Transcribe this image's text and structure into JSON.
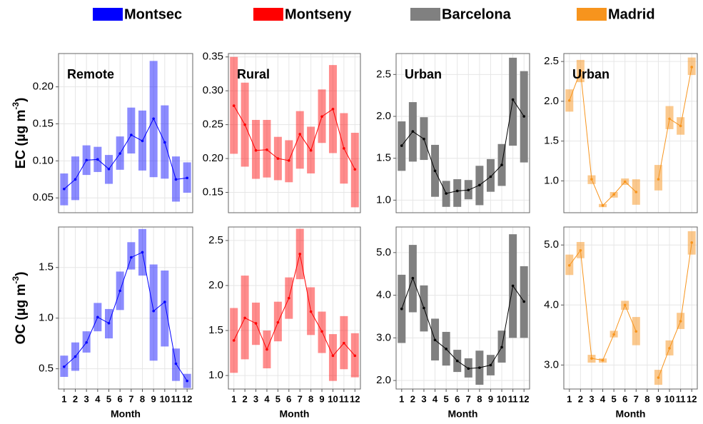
{
  "chart_data": [
    {
      "type": "floatbar",
      "label": "Remote",
      "ylabel": "EC (µg m",
      "ylabel_sup": "-3",
      "ylabel_end": ")",
      "categories": [
        "1",
        "2",
        "3",
        "4",
        "5",
        "6",
        "7",
        "8",
        "9",
        "10",
        "11",
        "12"
      ],
      "ylim": [
        0.03,
        0.245
      ],
      "yticks": [
        0.05,
        {
          "value": 0.1,
          "label": "0.10"
        },
        0.15,
        {
          "value": 0.2,
          "label": "0.20"
        }
      ],
      "grid": true,
      "series": [
        {
          "name": "Montsec",
          "color": "#0000ff",
          "line_color": "#0000ff",
          "opacity": 0.45,
          "low": [
            0.04,
            0.047,
            0.081,
            0.085,
            0.069,
            0.088,
            0.11,
            0.087,
            0.078,
            0.076,
            0.045,
            0.057
          ],
          "high": [
            0.083,
            0.106,
            0.121,
            0.119,
            0.108,
            0.133,
            0.172,
            0.168,
            0.235,
            0.175,
            0.106,
            0.098
          ],
          "values": [
            0.062,
            0.075,
            0.101,
            0.102,
            0.089,
            0.11,
            0.135,
            0.127,
            0.157,
            0.125,
            0.075,
            0.077
          ]
        }
      ]
    },
    {
      "type": "floatbar",
      "label": "Rural",
      "categories": [
        "1",
        "2",
        "3",
        "4",
        "5",
        "6",
        "7",
        "8",
        "9",
        "10",
        "11",
        "12"
      ],
      "ylim": [
        0.12,
        0.355
      ],
      "yticks": [
        0.15,
        {
          "value": 0.2,
          "label": "0.20"
        },
        0.25,
        {
          "value": 0.3,
          "label": "0.30"
        },
        0.35
      ],
      "grid": true,
      "series": [
        {
          "name": "Montseny",
          "color": "#ff0000",
          "line_color": "#ff0000",
          "opacity": 0.45,
          "low": [
            0.207,
            0.188,
            0.17,
            0.172,
            0.168,
            0.165,
            0.185,
            0.178,
            0.223,
            0.208,
            0.163,
            0.128
          ],
          "high": [
            0.35,
            0.312,
            0.257,
            0.257,
            0.232,
            0.227,
            0.27,
            0.247,
            0.302,
            0.338,
            0.267,
            0.238
          ],
          "values": [
            0.278,
            0.25,
            0.212,
            0.213,
            0.2,
            0.197,
            0.236,
            0.212,
            0.262,
            0.273,
            0.215,
            0.184
          ]
        }
      ]
    },
    {
      "type": "floatbar",
      "label": "Urban",
      "categories": [
        "1",
        "2",
        "3",
        "4",
        "5",
        "6",
        "7",
        "8",
        "9",
        "10",
        "11",
        "12"
      ],
      "ylim": [
        0.85,
        2.75
      ],
      "yticks": [
        {
          "value": 1,
          "label": "1.0"
        },
        1.5,
        {
          "value": 2,
          "label": "2.0"
        },
        2.5
      ],
      "grid": true,
      "series": [
        {
          "name": "Barcelona",
          "color": "#808080",
          "line_color": "#000000",
          "opacity": 1,
          "low": [
            1.35,
            1.46,
            1.48,
            1.04,
            0.92,
            0.92,
            1.01,
            0.94,
            1.1,
            1.17,
            1.65,
            1.45
          ],
          "high": [
            1.94,
            2.17,
            1.99,
            1.66,
            1.23,
            1.25,
            1.24,
            1.41,
            1.49,
            1.67,
            2.7,
            2.54
          ],
          "values": [
            1.65,
            1.82,
            1.73,
            1.35,
            1.08,
            1.11,
            1.12,
            1.18,
            1.28,
            1.42,
            2.2,
            2.0
          ]
        }
      ]
    },
    {
      "type": "floatbar",
      "label": "Urban",
      "categories": [
        "1",
        "2",
        "3",
        "4",
        "5",
        "6",
        "7",
        "8",
        "9",
        "10",
        "11",
        "12"
      ],
      "ylim": [
        0.6,
        2.6
      ],
      "yticks": [
        {
          "value": 1,
          "label": "1.0"
        },
        1.5,
        {
          "value": 2,
          "label": "2.0"
        },
        2.5
      ],
      "grid": true,
      "series": [
        {
          "name": "Madrid",
          "color": "#f7941d",
          "line_color": "#f7941d",
          "opacity": 0.5,
          "low": [
            1.87,
            2.24,
            0.96,
            0.67,
            0.79,
            0.95,
            0.7,
            null,
            0.88,
            1.65,
            1.58,
            2.33
          ],
          "high": [
            2.15,
            2.52,
            1.07,
            0.71,
            0.86,
            1.03,
            1.02,
            null,
            1.2,
            1.94,
            1.8,
            2.55
          ],
          "values": [
            2.01,
            2.38,
            1.02,
            0.69,
            0.83,
            0.99,
            0.86,
            null,
            1.02,
            1.78,
            1.69,
            2.43
          ]
        }
      ]
    },
    {
      "type": "floatbar",
      "ylabel": "OC (µg m",
      "ylabel_sup": "-3",
      "ylabel_end": ")",
      "xlabel": "Month",
      "categories": [
        "1",
        "2",
        "3",
        "4",
        "5",
        "6",
        "7",
        "8",
        "9",
        "10",
        "11",
        "12"
      ],
      "ylim": [
        0.3,
        1.9
      ],
      "yticks": [
        0.5,
        {
          "value": 1,
          "label": "1.0"
        },
        1.5
      ],
      "grid": true,
      "series": [
        {
          "color": "#0000ff",
          "line_color": "#0000ff",
          "opacity": 0.45,
          "low": [
            0.42,
            0.48,
            0.66,
            0.87,
            0.8,
            1.08,
            1.48,
            1.42,
            0.58,
            0.72,
            0.38,
            0.31
          ],
          "high": [
            0.63,
            0.76,
            0.87,
            1.15,
            1.09,
            1.46,
            1.75,
            1.88,
            1.53,
            1.47,
            0.7,
            0.45
          ],
          "values": [
            0.52,
            0.62,
            0.76,
            1.01,
            0.95,
            1.27,
            1.6,
            1.65,
            1.07,
            1.16,
            0.55,
            0.38
          ]
        }
      ]
    },
    {
      "type": "floatbar",
      "xlabel": "Month",
      "categories": [
        "1",
        "2",
        "3",
        "4",
        "5",
        "6",
        "7",
        "8",
        "9",
        "10",
        "11",
        "12"
      ],
      "ylim": [
        0.85,
        2.65
      ],
      "yticks": [
        {
          "value": 1,
          "label": "1.0"
        },
        1.5,
        {
          "value": 2,
          "label": "2.0"
        },
        2.5
      ],
      "grid": true,
      "series": [
        {
          "color": "#ff0000",
          "line_color": "#ff0000",
          "opacity": 0.45,
          "low": [
            1.03,
            1.18,
            1.34,
            1.08,
            1.38,
            1.63,
            2.07,
            1.45,
            1.25,
            0.94,
            1.07,
            0.98
          ],
          "high": [
            1.75,
            2.11,
            1.81,
            1.5,
            1.82,
            2.09,
            2.63,
            1.98,
            1.71,
            1.46,
            1.66,
            1.47
          ],
          "values": [
            1.39,
            1.64,
            1.58,
            1.29,
            1.59,
            1.86,
            2.35,
            1.71,
            1.49,
            1.22,
            1.36,
            1.22
          ]
        }
      ]
    },
    {
      "type": "floatbar",
      "xlabel": "Month",
      "categories": [
        "1",
        "2",
        "3",
        "4",
        "5",
        "6",
        "7",
        "8",
        "9",
        "10",
        "11",
        "12"
      ],
      "ylim": [
        1.8,
        5.6
      ],
      "yticks": [
        {
          "value": 2,
          "label": "2.0"
        },
        {
          "value": 3,
          "label": "3.0"
        },
        {
          "value": 4,
          "label": "4.0"
        },
        {
          "value": 5,
          "label": "5.0"
        }
      ],
      "grid": true,
      "series": [
        {
          "color": "#808080",
          "line_color": "#000000",
          "opacity": 1,
          "low": [
            2.88,
            3.6,
            3.15,
            2.47,
            2.35,
            2.2,
            2.07,
            1.9,
            2.12,
            2.42,
            3.0,
            3.0
          ],
          "high": [
            4.48,
            5.18,
            4.23,
            3.45,
            3.14,
            2.72,
            2.52,
            2.7,
            2.6,
            3.17,
            5.43,
            4.68
          ],
          "values": [
            3.68,
            4.4,
            3.7,
            2.95,
            2.74,
            2.46,
            2.28,
            2.3,
            2.36,
            2.78,
            4.22,
            3.85
          ]
        }
      ]
    },
    {
      "type": "floatbar",
      "xlabel": "Month",
      "categories": [
        "1",
        "2",
        "3",
        "4",
        "5",
        "6",
        "7",
        "8",
        "9",
        "10",
        "11",
        "12"
      ],
      "ylim": [
        2.6,
        5.3
      ],
      "yticks": [
        {
          "value": 3,
          "label": "3.0"
        },
        {
          "value": 4,
          "label": "4.0"
        },
        {
          "value": 5,
          "label": "5.0"
        }
      ],
      "grid": true,
      "series": [
        {
          "color": "#f7941d",
          "line_color": "#f7941d",
          "opacity": 0.5,
          "low": [
            4.5,
            4.78,
            3.04,
            3.04,
            3.46,
            3.92,
            3.33,
            null,
            2.67,
            3.16,
            3.6,
            4.84
          ],
          "high": [
            4.84,
            5.05,
            3.17,
            3.11,
            3.57,
            4.07,
            3.8,
            null,
            2.92,
            3.41,
            3.87,
            5.23
          ],
          "values": [
            4.66,
            4.91,
            3.11,
            3.08,
            3.51,
            4.0,
            3.56,
            null,
            2.79,
            3.28,
            3.73,
            5.04
          ]
        }
      ]
    }
  ]
}
